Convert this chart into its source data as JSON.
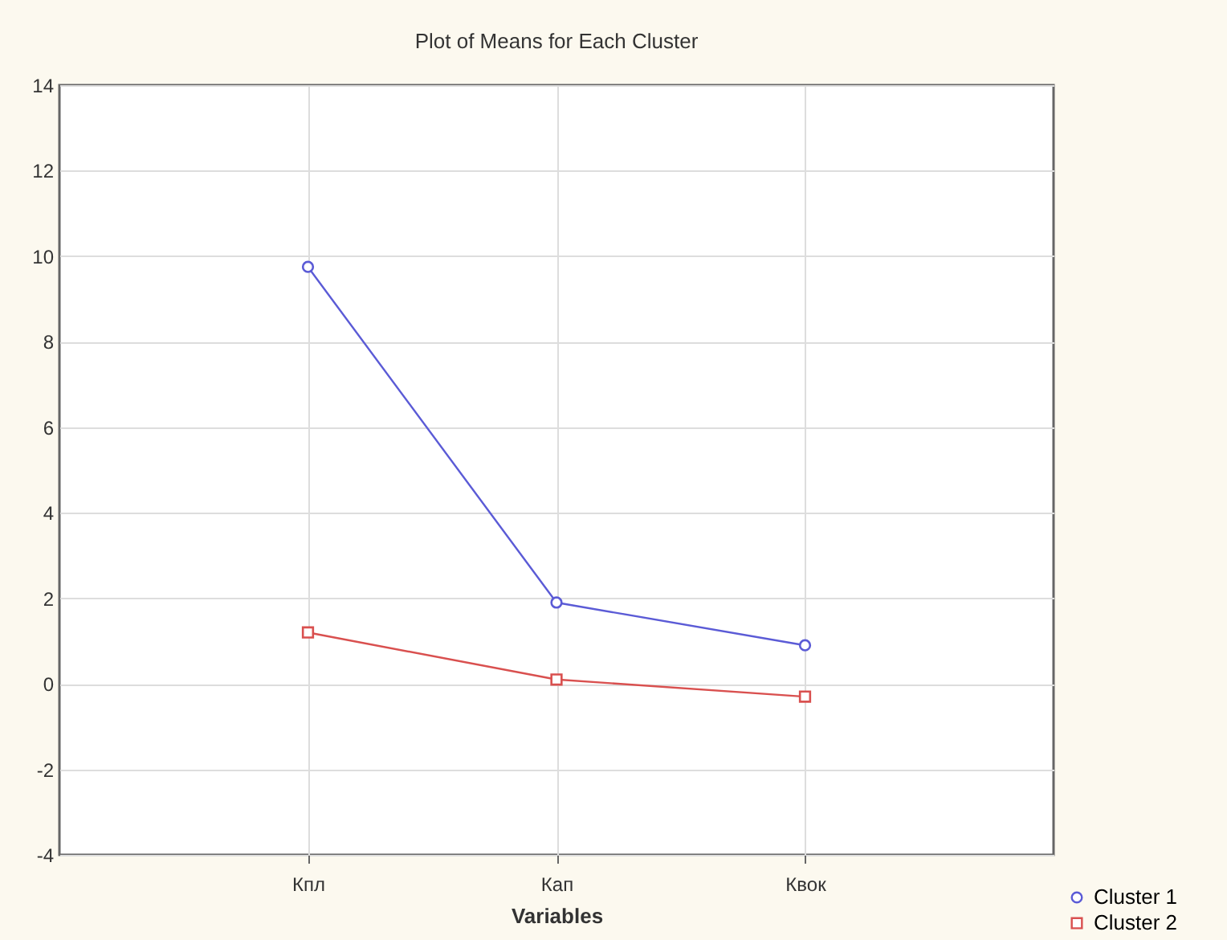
{
  "chart_data": {
    "type": "line",
    "title": "Plot of Means for Each Cluster",
    "xlabel": "Variables",
    "categories": [
      "Кпл",
      "Кап",
      "Квок"
    ],
    "series": [
      {
        "name": "Cluster 1",
        "color": "#5b5bd6",
        "marker": "circle",
        "values": [
          9.75,
          1.9,
          0.9
        ]
      },
      {
        "name": "Cluster 2",
        "color": "#d9504f",
        "marker": "square",
        "values": [
          1.2,
          0.1,
          -0.3
        ]
      }
    ],
    "ylim": [
      -4,
      14
    ],
    "yticks": [
      -4,
      -2,
      0,
      2,
      4,
      6,
      8,
      10,
      12,
      14
    ],
    "grid": true,
    "legend": "bottom right",
    "line_style": "solid"
  }
}
